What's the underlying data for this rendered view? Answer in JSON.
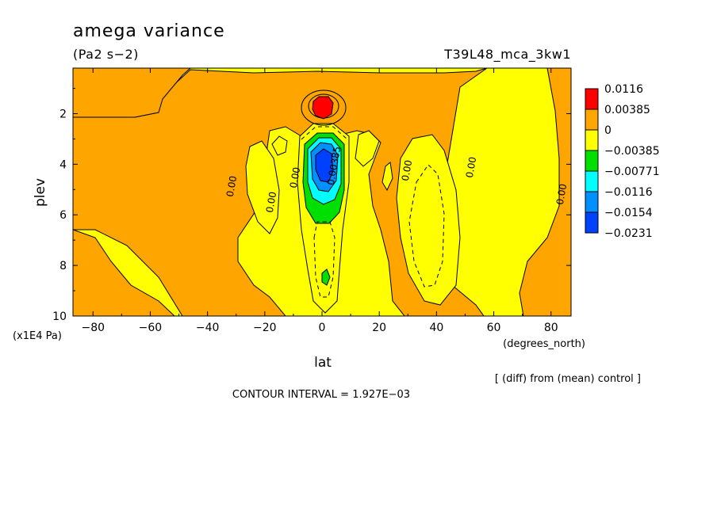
{
  "chart_data": {
    "type": "heatmap",
    "title": "amega variance",
    "units": "(Pa2 s−2)",
    "run_label": "T39L48_mca_3kw1",
    "xlabel": "lat",
    "xunit": "(degrees_north)",
    "ylabel": "plev",
    "yunit": "(x1E4 Pa)",
    "xlim": [
      -87,
      87
    ],
    "ylim": [
      10,
      0.2
    ],
    "x_ticks": [
      "−80",
      "−60",
      "−40",
      "−20",
      "0",
      "20",
      "40",
      "60",
      "80"
    ],
    "x_tick_values": [
      -80,
      -60,
      -40,
      -20,
      0,
      20,
      40,
      60,
      80
    ],
    "y_ticks": [
      "2",
      "4",
      "6",
      "8",
      "10"
    ],
    "y_tick_values": [
      2,
      4,
      6,
      8,
      10
    ],
    "legend_labels": [
      "0.0116",
      "0.00385",
      "0",
      "−0.00385",
      "−0.00771",
      "−0.0116",
      "−0.0154",
      "−0.0231"
    ],
    "legend_colors": [
      "#ff0000",
      "#ffa500",
      "#ffff00",
      "#00e000",
      "#00ffff",
      "#0090ff",
      "#0040ff"
    ],
    "colors": {
      "positive": "#ffa500",
      "near_zero": "#ffff00",
      "max": "#ff0000",
      "neg1": "#00e000",
      "neg2": "#00ffff",
      "neg3": "#0090ff",
      "neg4": "#0040ff"
    },
    "contour_labels": [
      "0.00",
      "0.00",
      "0.00",
      "0.00385",
      "0.00",
      "0.00",
      "0.00"
    ],
    "note": "[ (diff) from (mean) control ]",
    "contour_interval": "CONTOUR INTERVAL = 1.927E−03"
  }
}
